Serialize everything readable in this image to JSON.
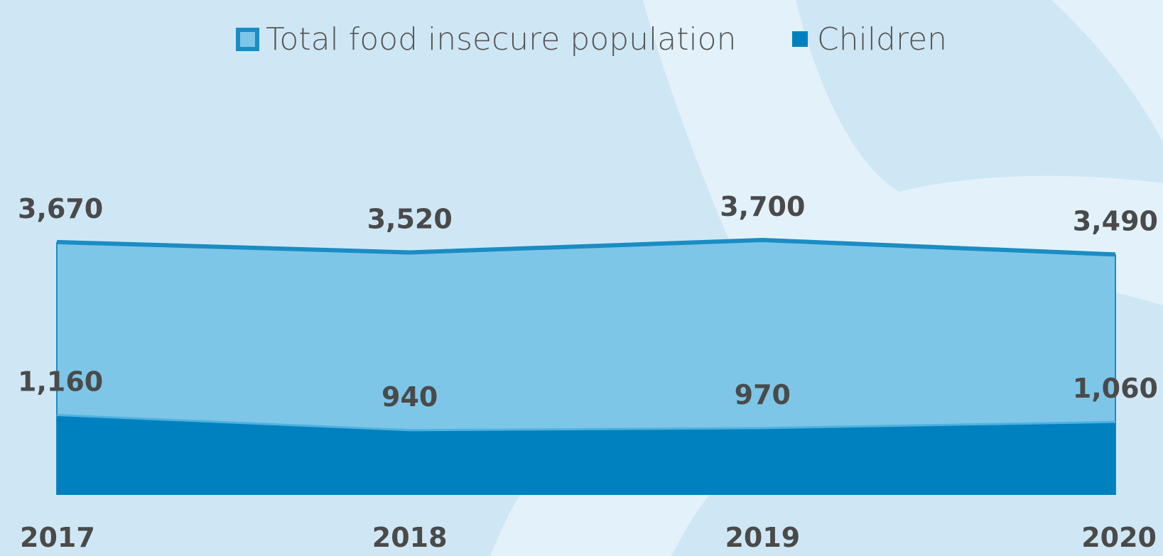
{
  "chart_data": {
    "type": "area",
    "categories": [
      "2017",
      "2018",
      "2019",
      "2020"
    ],
    "series": [
      {
        "name": "Total food insecure population",
        "values": [
          3670,
          3520,
          3700,
          3490
        ],
        "labels": [
          "3,670",
          "3,520",
          "3,700",
          "3,490"
        ],
        "fill_color": "#7dc6e8",
        "line_color": "#1b8cc4"
      },
      {
        "name": "Children",
        "values": [
          1160,
          940,
          970,
          1060
        ],
        "labels": [
          "1,160",
          "940",
          "970",
          "1,060"
        ],
        "fill_color": "#0081bf",
        "line_color": "#4fb1de"
      }
    ],
    "ylim": [
      0,
      3700
    ],
    "grid": false,
    "legend_position": "top-center"
  },
  "colors": {
    "background": "#cfe7f5",
    "background_swoosh": "#e3f2fa",
    "label_text": "#4a4a4a"
  }
}
